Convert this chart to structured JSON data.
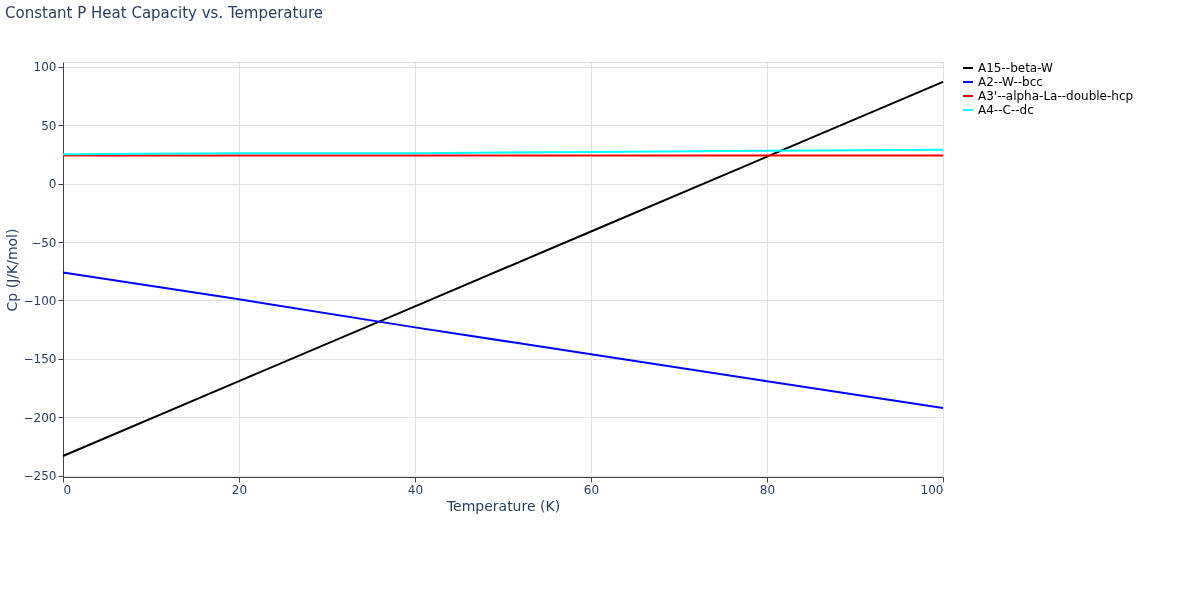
{
  "chart_data": {
    "type": "line",
    "title": "Constant P Heat Capacity vs. Temperature",
    "xlabel": "Temperature (K)",
    "ylabel": "Cp (J/K/mol)",
    "x": [
      0,
      20,
      40,
      60,
      80,
      100
    ],
    "series": [
      {
        "name": "A15--beta-W",
        "color": "#000000",
        "values": [
          -233,
          -169,
          -105,
          -41,
          23,
          87
        ]
      },
      {
        "name": "A2--W--bcc",
        "color": "#0000ff",
        "values": [
          -76,
          -99,
          -123,
          -146,
          -169,
          -192
        ]
      },
      {
        "name": "A3'--alpha-La--double-hcp",
        "color": "#ff0000",
        "values": [
          24,
          24,
          24,
          24,
          24,
          24
        ]
      },
      {
        "name": "A4--C--dc",
        "color": "#00ffff",
        "values": [
          25,
          26,
          26,
          27,
          28,
          29
        ]
      }
    ],
    "xlim": [
      0,
      100
    ],
    "ylim": [
      -251,
      104
    ],
    "xticks": [
      0,
      20,
      40,
      60,
      80,
      100
    ],
    "yticks": [
      -250,
      -200,
      -150,
      -100,
      -50,
      0,
      50,
      100
    ],
    "grid": true,
    "legend": "top right",
    "line_style": "solid",
    "marker": "none"
  }
}
